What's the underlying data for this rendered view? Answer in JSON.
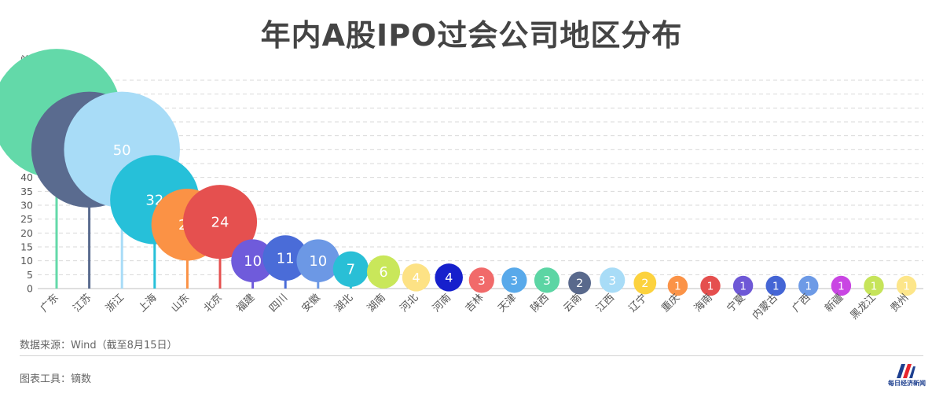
{
  "title": "年内A股IPO过会公司地区分布",
  "unit_label": "单位：家",
  "source": "数据来源：Wind（截至8月15日）",
  "tool": "图表工具：镝数",
  "logo": {
    "name": "每日经济新闻",
    "icon": "nbd-logo-icon",
    "colors": [
      "#1d3f8f",
      "#e8262d"
    ]
  },
  "chart_data": {
    "type": "bubble-lollipop",
    "title": "年内A股IPO过会公司地区分布",
    "ylabel": "单位：家",
    "ylim": [
      0,
      75
    ],
    "yticks": [
      0,
      5,
      10,
      15,
      20,
      25,
      30,
      35,
      40,
      45,
      50,
      55,
      60,
      65,
      70,
      75
    ],
    "grid": true,
    "categories": [
      "广东",
      "江苏",
      "浙江",
      "上海",
      "山东",
      "北京",
      "福建",
      "四川",
      "安徽",
      "湖北",
      "湖南",
      "河北",
      "河南",
      "吉林",
      "天津",
      "陕西",
      "云南",
      "江西",
      "辽宁",
      "重庆",
      "海南",
      "宁夏",
      "内蒙古",
      "广西",
      "新疆",
      "黑龙江",
      "贵州"
    ],
    "values": [
      63,
      50,
      50,
      32,
      23,
      24,
      10,
      11,
      10,
      7,
      6,
      4,
      4,
      3,
      3,
      3,
      2,
      3,
      2,
      1,
      1,
      1,
      1,
      1,
      1,
      1,
      1
    ],
    "colors": [
      "#63d9a9",
      "#5a6b8f",
      "#a8dcf7",
      "#26c0d9",
      "#fb9245",
      "#e5504f",
      "#6f5bdb",
      "#4a6cd8",
      "#6c98e5",
      "#29bfd6",
      "#c9e75a",
      "#fde285",
      "#1620cc",
      "#f16a6a",
      "#58a9ea",
      "#5cd5a4",
      "#59698c",
      "#a8dcf7",
      "#fcd23e",
      "#fb9347",
      "#e54f4e",
      "#6e58d6",
      "#4465d5",
      "#6d9ae6",
      "#c946e3",
      "#c6e45a",
      "#fde68a"
    ]
  }
}
